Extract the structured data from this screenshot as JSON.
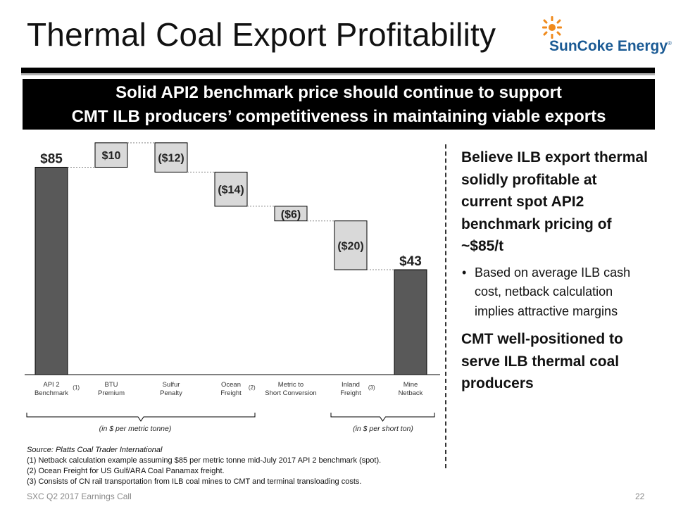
{
  "title": "Thermal Coal Export Profitability",
  "logo": {
    "text": "SunCoke Energy",
    "registered": "®"
  },
  "banner": {
    "line1": "Solid API2 benchmark price should continue to support",
    "line2": "CMT ILB producers’ competitiveness in maintaining viable exports"
  },
  "chart_data": {
    "type": "waterfall",
    "categories": [
      {
        "line1": "API 2",
        "line2": "Benchmark",
        "note": "(1)"
      },
      {
        "line1": "BTU",
        "line2": "Premium",
        "note": ""
      },
      {
        "line1": "Sulfur",
        "line2": "Penalty",
        "note": ""
      },
      {
        "line1": "Ocean",
        "line2": "Freight",
        "note": "(2)"
      },
      {
        "line1": "Metric to",
        "line2": "Short Conversion",
        "note": ""
      },
      {
        "line1": "Inland",
        "line2": "Freight",
        "note": "(3)"
      },
      {
        "line1": "Mine",
        "line2": "Netback",
        "note": ""
      }
    ],
    "steps": [
      {
        "kind": "total",
        "value": 85,
        "label": "$85"
      },
      {
        "kind": "delta",
        "value": 10,
        "label": "$10"
      },
      {
        "kind": "delta",
        "value": -12,
        "label": "($12)"
      },
      {
        "kind": "delta",
        "value": -14,
        "label": "($14)"
      },
      {
        "kind": "delta",
        "value": -6,
        "label": "($6)"
      },
      {
        "kind": "delta",
        "value": -20,
        "label": "($20)"
      },
      {
        "kind": "total",
        "value": 43,
        "label": "$43"
      }
    ],
    "unit_groups": [
      {
        "label": "(in $ per metric tonne)"
      },
      {
        "label": "(in $ per short ton)"
      }
    ],
    "colors": {
      "total": "#595959",
      "delta": "#d9d9d9",
      "stroke": "#000000"
    }
  },
  "right_panel": {
    "heading": "Believe ILB export thermal solidly profitable at current spot API2 benchmark pricing of ~$85/t",
    "bullet": "Based on average ILB cash cost, netback calculation implies attractive margins",
    "heading2": "CMT well-positioned to serve ILB thermal coal producers"
  },
  "notes": {
    "source": "Source: Platts Coal Trader International",
    "n1": "(1)  Netback calculation example assuming $85 per metric tonne mid-July 2017 API 2 benchmark (spot).",
    "n2": "(2)  Ocean Freight  for US Gulf/ARA Coal Panamax freight.",
    "n3": "(3)  Consists of CN rail transportation from ILB coal mines to CMT and terminal transloading costs."
  },
  "footer": {
    "left": "SXC Q2 2017 Earnings Call",
    "page": "22"
  }
}
